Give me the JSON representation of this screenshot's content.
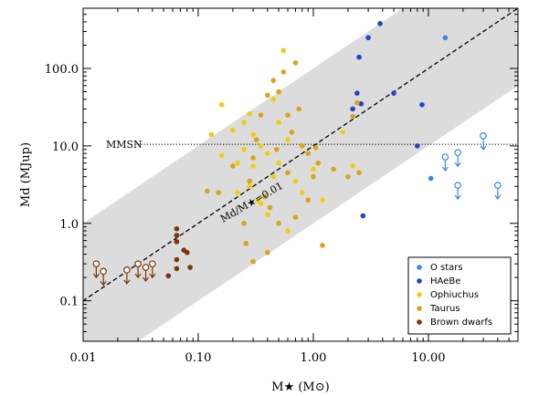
{
  "chart_data": {
    "type": "scatter",
    "xscale": "log",
    "yscale": "log",
    "xlim": [
      0.01,
      60
    ],
    "ylim": [
      0.03,
      600
    ],
    "xticks": [
      "0.01",
      "0.10",
      "1.00",
      "10.00"
    ],
    "yticks": [
      "0.1",
      "1.0",
      "10.0",
      "100.0"
    ],
    "xlabel": "M★ (M⊙)",
    "ylabel": "Md (MJup)",
    "mmsn": {
      "label": "MMSN",
      "y": 10.5
    },
    "ratio_line": {
      "label": "Md/M★=0.01",
      "ratio": 0.01
    },
    "band": {
      "lower_ratio": 0.001,
      "upper_ratio": 0.1
    },
    "legend_position": "bottom-right",
    "series": [
      {
        "name": "O stars",
        "color": "#3a86e6",
        "points": [
          [
            10.5,
            3.8
          ],
          [
            14,
            250
          ]
        ],
        "upper_limits": [
          [
            14,
            7.2
          ],
          [
            18,
            8.2
          ],
          [
            18,
            3.1
          ],
          [
            30,
            13.5
          ],
          [
            40,
            3.1
          ]
        ]
      },
      {
        "name": "HAeBe",
        "color": "#2244c8",
        "points": [
          [
            2.5,
            140
          ],
          [
            3.0,
            250
          ],
          [
            3.8,
            380
          ],
          [
            2.4,
            48
          ],
          [
            2.6,
            35
          ],
          [
            2.2,
            30
          ],
          [
            5.0,
            48
          ],
          [
            8.8,
            34
          ],
          [
            8.0,
            10
          ],
          [
            2.7,
            1.25
          ]
        ]
      },
      {
        "name": "Ophiuchus",
        "color": "#f2cc10",
        "points": [
          [
            0.13,
            14
          ],
          [
            0.16,
            34
          ],
          [
            0.2,
            16
          ],
          [
            0.22,
            6
          ],
          [
            0.25,
            20
          ],
          [
            0.28,
            26
          ],
          [
            0.3,
            14
          ],
          [
            0.35,
            10
          ],
          [
            0.4,
            8
          ],
          [
            0.45,
            40
          ],
          [
            0.5,
            20
          ],
          [
            0.55,
            170
          ],
          [
            0.6,
            12
          ],
          [
            0.28,
            3
          ],
          [
            0.33,
            2
          ],
          [
            0.45,
            4
          ],
          [
            0.5,
            6
          ],
          [
            0.7,
            3.5
          ],
          [
            0.8,
            2.5
          ],
          [
            1.0,
            5
          ],
          [
            1.2,
            2
          ],
          [
            0.35,
            1.8
          ],
          [
            0.16,
            7.5
          ],
          [
            0.22,
            2.5
          ],
          [
            2.2,
            5.5
          ],
          [
            1.8,
            15
          ],
          [
            0.4,
            1.3
          ],
          [
            0.6,
            0.8
          ],
          [
            0.3,
            5.5
          ],
          [
            0.25,
            9
          ]
        ]
      },
      {
        "name": "Taurus",
        "color": "#d9a41a",
        "points": [
          [
            0.12,
            2.6
          ],
          [
            0.15,
            2.5
          ],
          [
            0.2,
            5.5
          ],
          [
            0.25,
            1.0
          ],
          [
            0.28,
            3.5
          ],
          [
            0.3,
            0.32
          ],
          [
            0.32,
            12
          ],
          [
            0.35,
            25
          ],
          [
            0.4,
            45
          ],
          [
            0.45,
            70
          ],
          [
            0.5,
            50
          ],
          [
            0.55,
            90
          ],
          [
            0.6,
            25
          ],
          [
            0.65,
            15
          ],
          [
            0.7,
            118
          ],
          [
            0.75,
            30
          ],
          [
            0.8,
            10
          ],
          [
            0.9,
            8
          ],
          [
            1.0,
            4
          ],
          [
            1.05,
            9.5
          ],
          [
            1.1,
            6
          ],
          [
            1.2,
            0.52
          ],
          [
            1.5,
            5
          ],
          [
            2.0,
            4
          ],
          [
            2.2,
            24
          ],
          [
            2.4,
            36
          ],
          [
            2.5,
            4.5
          ],
          [
            0.42,
            1.6
          ],
          [
            0.38,
            2.2
          ],
          [
            0.5,
            1.0
          ],
          [
            0.7,
            1.2
          ],
          [
            0.9,
            2
          ],
          [
            0.6,
            4.5
          ],
          [
            0.48,
            9
          ],
          [
            0.3,
            7
          ],
          [
            0.26,
            0.55
          ],
          [
            0.4,
            0.42
          ]
        ]
      },
      {
        "name": "Brown dwarfs",
        "color": "#7a3508",
        "points": [
          [
            0.055,
            0.21
          ],
          [
            0.065,
            0.85
          ],
          [
            0.065,
            0.7
          ],
          [
            0.065,
            0.58
          ],
          [
            0.065,
            0.34
          ],
          [
            0.065,
            0.26
          ],
          [
            0.075,
            0.45
          ],
          [
            0.08,
            0.42
          ],
          [
            0.085,
            0.27
          ]
        ],
        "upper_limits": [
          [
            0.013,
            0.3
          ],
          [
            0.015,
            0.24
          ],
          [
            0.024,
            0.25
          ],
          [
            0.03,
            0.3
          ],
          [
            0.035,
            0.27
          ],
          [
            0.04,
            0.3
          ]
        ]
      }
    ]
  }
}
